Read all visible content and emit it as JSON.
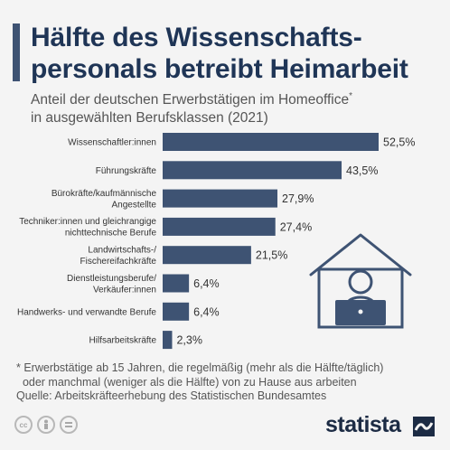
{
  "header": {
    "title_line1": "Hälfte des Wissenschafts-",
    "title_line2": "personals betreibt Heimarbeit",
    "subtitle_line1": "Anteil der deutschen Erwerbstätigen im Homeoffice",
    "subtitle_marker": "*",
    "subtitle_line2": "in ausgewählten Berufsklassen (2021)"
  },
  "chart_data": {
    "type": "bar",
    "orientation": "horizontal",
    "categories": [
      [
        "Wissenschaftler:innen"
      ],
      [
        "Führungskräfte"
      ],
      [
        "Bürokräfte/kaufmännische",
        "Angestellte"
      ],
      [
        "Techniker:innen und gleichrangige",
        "nichttechnische Berufe"
      ],
      [
        "Landwirtschafts-/",
        "Fischereifachkräfte"
      ],
      [
        "Dienstleistungsberufe/",
        "Verkäufer:innen"
      ],
      [
        "Handwerks- und verwandte Berufe"
      ],
      [
        "Hilfsarbeitskräfte"
      ]
    ],
    "values": [
      52.5,
      43.5,
      27.9,
      27.4,
      21.5,
      6.4,
      6.4,
      2.3
    ],
    "value_labels": [
      "52,5%",
      "43,5%",
      "27,9%",
      "27,4%",
      "21,5%",
      "6,4%",
      "6,4%",
      "2,3%"
    ],
    "xlim": [
      0,
      52.5
    ],
    "bar_color": "#3e5373",
    "grid": false
  },
  "footer": {
    "footnote_line1": "* Erwerbstätige ab 15 Jahren, die regelmäßig (mehr als die Hälfte/täglich)",
    "footnote_line2": "  oder manchmal (weniger als die Hälfte) von zu Hause aus arbeiten",
    "source": "Quelle: Arbeitskräfteerhebung des Statistischen Bundesamtes",
    "brand": "statista",
    "license_icons": [
      "cc-icon",
      "person-icon",
      "equals-icon"
    ]
  },
  "colors": {
    "accent": "#3e5373",
    "title": "#1f3556",
    "illustration": "#3e5373"
  }
}
